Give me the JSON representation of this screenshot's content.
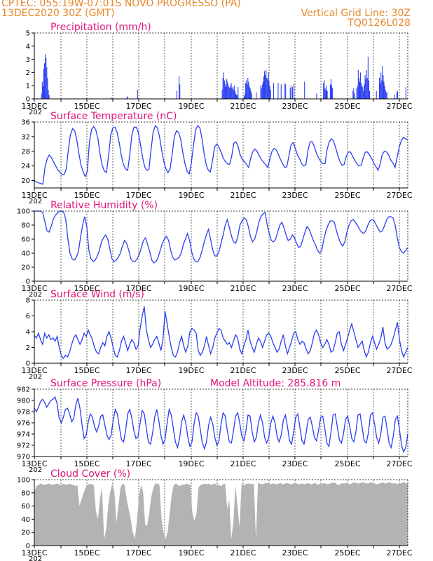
{
  "header": {
    "line1_left": "CPTEC:   055:19W-07:01S   NOVO PROGRESSO (PA)",
    "line2_left": "13DEC2020 30Z (GMT)",
    "line2_right": "Vertical Grid Line: 30Z",
    "line3_right": "TQ0126L028"
  },
  "colors": {
    "header": "#e8872a",
    "title": "#e0157a",
    "series": "#2a3ff0",
    "cloud": "#b3b3b3",
    "axis": "#000000"
  },
  "x_axis": {
    "date_labels": [
      "13DEC",
      "15DEC",
      "17DEC",
      "19DEC",
      "21DEC",
      "23DEC",
      "25DEC",
      "27DEC"
    ],
    "sub_label": "202"
  },
  "chart_data": [
    {
      "type": "bar",
      "title": "Precipitation (mm/h)",
      "ylim": [
        0,
        5
      ],
      "yticks": [
        0,
        1,
        2,
        3,
        4,
        5
      ],
      "values": [
        0,
        0,
        0,
        0,
        0,
        0,
        0,
        0,
        0,
        0.4,
        1.3,
        1.0,
        2.3,
        2.7,
        3.4,
        3.1,
        2.4,
        1.6,
        0.7,
        0.3,
        0,
        0,
        0,
        0,
        0,
        0,
        0,
        0,
        0,
        0,
        0,
        0,
        0,
        0,
        0,
        0,
        0,
        0,
        0,
        0,
        0,
        0,
        0,
        0,
        0,
        0,
        0,
        0,
        0,
        0,
        0,
        0,
        0,
        0,
        0,
        0,
        0,
        0,
        0,
        0,
        0,
        0,
        0,
        0,
        0,
        0,
        0,
        0,
        0,
        0,
        0,
        0,
        0,
        0,
        0,
        0,
        0,
        0,
        0,
        0,
        0,
        0,
        0,
        0,
        0,
        0,
        0,
        0,
        0,
        0,
        0,
        0,
        0,
        0,
        0,
        0,
        0,
        0,
        0,
        0,
        0,
        0,
        0.1,
        0,
        0,
        0,
        0,
        0,
        0,
        0,
        0,
        0,
        0,
        0,
        0,
        0,
        0,
        0,
        0,
        0,
        0,
        0,
        0.1,
        0.2,
        0,
        0,
        0,
        0,
        0,
        0,
        0,
        0,
        0,
        0,
        0,
        0,
        0.7,
        0,
        0,
        0,
        0,
        0,
        0,
        0,
        0,
        0,
        0,
        0,
        0,
        0,
        0,
        0,
        0,
        0,
        0,
        0,
        0,
        0,
        0,
        0,
        0,
        0,
        0,
        0,
        0,
        0,
        0,
        0,
        0,
        0,
        0,
        0,
        0,
        0,
        0,
        0,
        0,
        0,
        0,
        0,
        0,
        0,
        0,
        0,
        0,
        0,
        0,
        0,
        0.6,
        0,
        0,
        1.7,
        1.1,
        0,
        0,
        0,
        0,
        0,
        0,
        0,
        0,
        0,
        0,
        0,
        0,
        0,
        0,
        0,
        0,
        0,
        0,
        0,
        0,
        0,
        0,
        0,
        0,
        0,
        0,
        0,
        0,
        0,
        0,
        0,
        0,
        0,
        0,
        0,
        0,
        0,
        0,
        0,
        0,
        0,
        0,
        0,
        0,
        0,
        0,
        0,
        0,
        0,
        0,
        0,
        0,
        0,
        0,
        0,
        0.7,
        1.6,
        2.0,
        1.4,
        1.1,
        0.9,
        1.5,
        1.3,
        1.1,
        0.9,
        0.8,
        1.0,
        1.2,
        0.8,
        0.9,
        0.7,
        1.0,
        0.6,
        0.4,
        0.3,
        0.3,
        0.9,
        0,
        0,
        0,
        0,
        0,
        0,
        0,
        0.2,
        0.4,
        1.2,
        1.4,
        1.1,
        1.6,
        1.3,
        1.0,
        0.8,
        0.6,
        0.4,
        0,
        0,
        0,
        0,
        0,
        0.5,
        0,
        0,
        0,
        0,
        0,
        1.0,
        0.8,
        1.1,
        1.3,
        1.7,
        2.1,
        1.8,
        2.2,
        1.6,
        1.5,
        2.0,
        1.4,
        1.0,
        0.7,
        0,
        0,
        0,
        1.2,
        0,
        0,
        0,
        0,
        0,
        1.2,
        0,
        0,
        0,
        1.1,
        0,
        0,
        0,
        0,
        1.2,
        1.1,
        0,
        0,
        0,
        0,
        0,
        0.8,
        1.0,
        0,
        0.9,
        0,
        1.1,
        0,
        0,
        0,
        0,
        0,
        0,
        0,
        0,
        0,
        0,
        0,
        0,
        0,
        1.3,
        0,
        0,
        0,
        0,
        0,
        0,
        0,
        0,
        0,
        0,
        0,
        0,
        0,
        0,
        0,
        0.4,
        0,
        0,
        0,
        0,
        0,
        0,
        0,
        0,
        1.2,
        1.4,
        0.8,
        0.7,
        1.0,
        0.6,
        0,
        0,
        0,
        1.1,
        1.5,
        1.0,
        0.8,
        0,
        0,
        0,
        0,
        0,
        0,
        0,
        0,
        0,
        0,
        0,
        0,
        0,
        0,
        0,
        0,
        0,
        0,
        0,
        0,
        0,
        0,
        0,
        0,
        0,
        0,
        0.6,
        0.8,
        0.4,
        0,
        0,
        0.8,
        1.0,
        2.2,
        1.6,
        1.3,
        2.0,
        1.2,
        1.0,
        0.9,
        0.6,
        1.1,
        1.8,
        1.5,
        2.2,
        1.6,
        3.2,
        1.4,
        0.6,
        0,
        0,
        0,
        0,
        0,
        0,
        0,
        0,
        0.6,
        0,
        0,
        0,
        1.6,
        1.2,
        2.0,
        1.4,
        2.5,
        1.8,
        1.3,
        1.0,
        0.7,
        0.5,
        0.5,
        0,
        0,
        0,
        0,
        0,
        0,
        0,
        0,
        0,
        0.3,
        0,
        0,
        0.5,
        0.6,
        0,
        0,
        0,
        0,
        0,
        0,
        0,
        0,
        0,
        0,
        0.9,
        0,
        0
      ]
    },
    {
      "type": "line",
      "title": "Surface Temperature (nC)",
      "ylim": [
        18,
        36
      ],
      "yticks": [
        20,
        24,
        28,
        32,
        36
      ],
      "values": [
        20,
        19.6,
        19.4,
        19.2,
        19.0,
        23.5,
        25.8,
        27.0,
        26.3,
        25.2,
        24.1,
        23.0,
        22.3,
        21.7,
        21.6,
        23.0,
        28.2,
        32.5,
        34.2,
        33.6,
        31.2,
        27.4,
        24.2,
        22.4,
        21.1,
        22.6,
        30.8,
        34.0,
        34.8,
        33.8,
        31.4,
        27.1,
        24.2,
        22.6,
        22.2,
        26.8,
        32.4,
        34.4,
        34.6,
        33.2,
        30.4,
        26.8,
        24.4,
        23.2,
        22.8,
        27.2,
        32.6,
        34.6,
        34.6,
        33.2,
        30.0,
        26.4,
        23.8,
        22.8,
        23.0,
        28.4,
        33.2,
        35.0,
        34.4,
        32.0,
        28.4,
        25.2,
        23.2,
        22.2,
        23.2,
        27.4,
        32.0,
        33.6,
        33.2,
        31.2,
        27.6,
        24.6,
        22.6,
        21.8,
        24.8,
        29.6,
        33.8,
        35.0,
        34.4,
        31.6,
        27.4,
        24.4,
        22.8,
        22.4,
        25.6,
        29.2,
        30.0,
        29.2,
        27.8,
        26.2,
        25.2,
        24.6,
        24.4,
        26.6,
        30.2,
        30.6,
        29.4,
        27.0,
        25.8,
        25.2,
        24.4,
        23.6,
        26.2,
        28.0,
        28.6,
        28.0,
        26.8,
        25.8,
        25.0,
        24.4,
        23.6,
        25.8,
        28.0,
        28.8,
        28.4,
        27.2,
        25.8,
        24.6,
        23.6,
        23.8,
        26.8,
        29.8,
        30.4,
        28.8,
        27.0,
        26.0,
        24.6,
        24.0,
        24.4,
        28.4,
        30.6,
        30.6,
        29.2,
        27.4,
        26.2,
        25.2,
        24.6,
        24.6,
        28.6,
        30.6,
        31.4,
        30.8,
        29.0,
        27.0,
        25.2,
        24.2,
        24.4,
        26.6,
        27.8,
        27.8,
        26.6,
        25.6,
        24.6,
        24.0,
        24.2,
        26.2,
        27.8,
        27.8,
        27.0,
        26.0,
        24.8,
        23.8,
        22.8,
        24.6,
        27.2,
        28.0,
        27.8,
        27.0,
        25.6,
        24.8,
        23.6,
        26.4,
        29.2,
        31.0,
        31.8,
        31.4,
        31.0
      ]
    },
    {
      "type": "line",
      "title": "Relative Humidity (%)",
      "ylim": [
        0,
        100
      ],
      "yticks": [
        0,
        20,
        40,
        60,
        80,
        100
      ],
      "values": [
        100,
        100,
        100,
        100,
        98,
        85,
        72,
        70,
        78,
        88,
        94,
        97,
        100,
        100,
        98,
        88,
        60,
        40,
        32,
        30,
        34,
        42,
        62,
        80,
        92,
        78,
        44,
        32,
        28,
        30,
        36,
        44,
        56,
        62,
        66,
        60,
        46,
        32,
        28,
        30,
        34,
        40,
        50,
        58,
        54,
        44,
        32,
        28,
        28,
        32,
        38,
        48,
        58,
        62,
        52,
        42,
        30,
        26,
        28,
        34,
        44,
        54,
        60,
        64,
        58,
        44,
        34,
        30,
        32,
        34,
        40,
        52,
        60,
        68,
        58,
        42,
        32,
        28,
        28,
        34,
        44,
        56,
        66,
        74,
        60,
        45,
        36,
        36,
        42,
        54,
        66,
        80,
        88,
        76,
        64,
        56,
        54,
        64,
        80,
        86,
        90,
        88,
        78,
        64,
        56,
        60,
        70,
        84,
        92,
        96,
        98,
        80,
        68,
        58,
        56,
        60,
        70,
        80,
        84,
        76,
        66,
        58,
        60,
        66,
        62,
        54,
        48,
        50,
        60,
        70,
        78,
        74,
        66,
        58,
        52,
        44,
        40,
        44,
        60,
        72,
        80,
        86,
        86,
        84,
        72,
        62,
        54,
        50,
        56,
        70,
        80,
        86,
        88,
        84,
        80,
        74,
        70,
        68,
        72,
        80,
        86,
        88,
        86,
        80,
        74,
        70,
        72,
        80,
        88,
        92,
        92,
        90,
        80,
        62,
        48,
        42,
        40,
        44,
        48
      ]
    },
    {
      "type": "line",
      "title": "Surface Wind (m/s)",
      "ylim": [
        0,
        8
      ],
      "yticks": [
        0,
        2,
        4,
        6,
        8
      ],
      "values": [
        3.5,
        3.2,
        3.8,
        3.0,
        2.4,
        3.8,
        3.2,
        3.6,
        3.0,
        3.2,
        2.8,
        3.4,
        2.0,
        1.0,
        0.6,
        1.0,
        0.8,
        1.4,
        2.4,
        3.2,
        3.6,
        3.0,
        2.4,
        3.0,
        3.8,
        3.4,
        4.2,
        3.6,
        3.0,
        2.0,
        1.4,
        1.2,
        2.0,
        2.6,
        2.2,
        3.4,
        4.0,
        3.2,
        2.0,
        1.0,
        0.8,
        1.6,
        2.8,
        3.4,
        2.6,
        1.6,
        2.4,
        3.0,
        2.6,
        1.8,
        2.2,
        4.4,
        6.0,
        7.2,
        4.2,
        3.0,
        2.0,
        2.4,
        3.0,
        3.4,
        2.6,
        1.6,
        3.0,
        6.6,
        5.0,
        3.4,
        2.0,
        1.0,
        0.8,
        1.4,
        2.6,
        3.4,
        2.2,
        1.4,
        2.2,
        4.0,
        4.4,
        4.2,
        3.8,
        1.6,
        1.0,
        1.4,
        2.2,
        3.4,
        2.2,
        1.2,
        2.0,
        3.2,
        3.8,
        4.4,
        4.2,
        3.2,
        2.8,
        2.4,
        2.6,
        2.0,
        2.8,
        3.6,
        3.2,
        1.8,
        1.2,
        2.2,
        3.0,
        4.2,
        2.8,
        2.0,
        1.4,
        2.4,
        3.2,
        2.8,
        2.0,
        2.8,
        3.6,
        3.8,
        3.4,
        2.6,
        2.0,
        1.4,
        1.8,
        2.8,
        3.6,
        2.2,
        1.2,
        2.0,
        2.8,
        3.8,
        4.0,
        3.0,
        2.4,
        2.8,
        2.6,
        1.8,
        1.2,
        1.6,
        2.6,
        3.8,
        4.2,
        3.6,
        2.6,
        2.0,
        2.4,
        3.0,
        2.4,
        1.4,
        1.6,
        2.6,
        3.8,
        4.0,
        2.4,
        1.6,
        2.4,
        3.2,
        4.2,
        5.0,
        4.0,
        3.0,
        2.0,
        2.4,
        2.8,
        1.6,
        0.8,
        1.4,
        2.6,
        3.4,
        2.6,
        1.8,
        2.4,
        3.2,
        4.6,
        2.6,
        1.8,
        2.0,
        2.4,
        3.2,
        4.2,
        5.2,
        3.0,
        1.6,
        0.8,
        1.4,
        2.0
      ]
    },
    {
      "type": "line",
      "title": "Surface Pressure (hPa)",
      "annotation": "Model Altitude: 285.816 m",
      "ylim": [
        970,
        982
      ],
      "yticks": [
        970,
        972,
        974,
        976,
        978,
        980,
        982
      ],
      "values": [
        978.6,
        978.0,
        978.8,
        979.8,
        980.2,
        979.6,
        978.8,
        979.4,
        980.0,
        980.2,
        980.6,
        979.4,
        976.8,
        976.0,
        977.0,
        978.4,
        978.6,
        977.6,
        976.2,
        976.8,
        979.2,
        980.4,
        978.6,
        975.6,
        973.2,
        973.8,
        976.2,
        977.6,
        977.0,
        975.4,
        974.4,
        975.4,
        977.2,
        977.4,
        975.6,
        973.8,
        973.0,
        973.8,
        976.4,
        978.4,
        977.6,
        975.2,
        973.0,
        972.6,
        974.6,
        977.6,
        978.4,
        976.8,
        974.6,
        973.2,
        973.6,
        976.0,
        978.2,
        977.6,
        975.0,
        972.6,
        972.2,
        974.2,
        977.0,
        978.4,
        976.4,
        973.8,
        972.2,
        973.0,
        976.0,
        978.4,
        977.4,
        975.0,
        972.6,
        971.6,
        973.2,
        976.2,
        977.4,
        976.0,
        973.4,
        971.8,
        972.6,
        975.8,
        977.8,
        977.2,
        974.8,
        972.4,
        971.4,
        972.6,
        975.6,
        977.0,
        975.8,
        973.4,
        972.0,
        972.8,
        975.8,
        977.8,
        977.2,
        974.6,
        972.6,
        972.4,
        974.6,
        977.2,
        977.8,
        976.0,
        973.6,
        972.8,
        974.6,
        977.4,
        977.2,
        974.4,
        972.6,
        973.4,
        976.0,
        977.4,
        976.0,
        973.4,
        972.4,
        973.4,
        976.0,
        977.2,
        976.0,
        973.6,
        972.6,
        973.8,
        976.4,
        977.4,
        975.4,
        972.8,
        972.2,
        974.4,
        977.0,
        977.6,
        975.2,
        972.8,
        972.2,
        974.2,
        976.6,
        977.0,
        975.4,
        973.4,
        972.8,
        974.6,
        977.0,
        977.2,
        975.0,
        972.4,
        971.8,
        974.4,
        977.4,
        977.6,
        975.4,
        973.0,
        972.4,
        974.0,
        976.6,
        977.2,
        975.4,
        973.2,
        972.6,
        974.4,
        977.4,
        977.6,
        975.2,
        972.8,
        972.4,
        974.2,
        977.4,
        977.8,
        975.8,
        973.4,
        972.4,
        974.0,
        977.0,
        977.2,
        975.0,
        972.4,
        971.6,
        973.6,
        976.6,
        977.2,
        974.8,
        972.0,
        970.8,
        971.6,
        974.0
      ]
    },
    {
      "type": "area",
      "title": "Cloud Cover (%)",
      "ylim": [
        0,
        100
      ],
      "yticks": [
        0,
        20,
        40,
        60,
        80,
        100
      ],
      "values": [
        82,
        90,
        92,
        94,
        93,
        92,
        93,
        94,
        93,
        92,
        93,
        94,
        93,
        92,
        94,
        93,
        92,
        94,
        93,
        92,
        90,
        92,
        60,
        70,
        80,
        88,
        92,
        94,
        93,
        92,
        52,
        40,
        72,
        88,
        10,
        25,
        60,
        82,
        94,
        82,
        35,
        60,
        88,
        94,
        92,
        70,
        55,
        40,
        20,
        10,
        38,
        74,
        92,
        82,
        32,
        30,
        50,
        74,
        88,
        94,
        94,
        92,
        40,
        20,
        10,
        22,
        50,
        78,
        92,
        94,
        92,
        90,
        93,
        92,
        94,
        93,
        92,
        50,
        38,
        48,
        88,
        92,
        93,
        94,
        93,
        94,
        92,
        93,
        94,
        92,
        92,
        90,
        93,
        94,
        55,
        70,
        10,
        35,
        92,
        60,
        28,
        94,
        92,
        93,
        94,
        94,
        93,
        94,
        10,
        95,
        94,
        93,
        94,
        95,
        94,
        93,
        94,
        94,
        93,
        94,
        95,
        93,
        94,
        95,
        94,
        93,
        94,
        95,
        94,
        93,
        94,
        94,
        93,
        95,
        94,
        93,
        94,
        95,
        92,
        94,
        93,
        95,
        94,
        93,
        94,
        95,
        96,
        94,
        92,
        93,
        95,
        94,
        95,
        94,
        93,
        95,
        96,
        95,
        94,
        95,
        96,
        95,
        94,
        95,
        96,
        95,
        94,
        93,
        94,
        95,
        96,
        94,
        95,
        96,
        95,
        94,
        95,
        93,
        94,
        95,
        96,
        95,
        94
      ]
    }
  ]
}
